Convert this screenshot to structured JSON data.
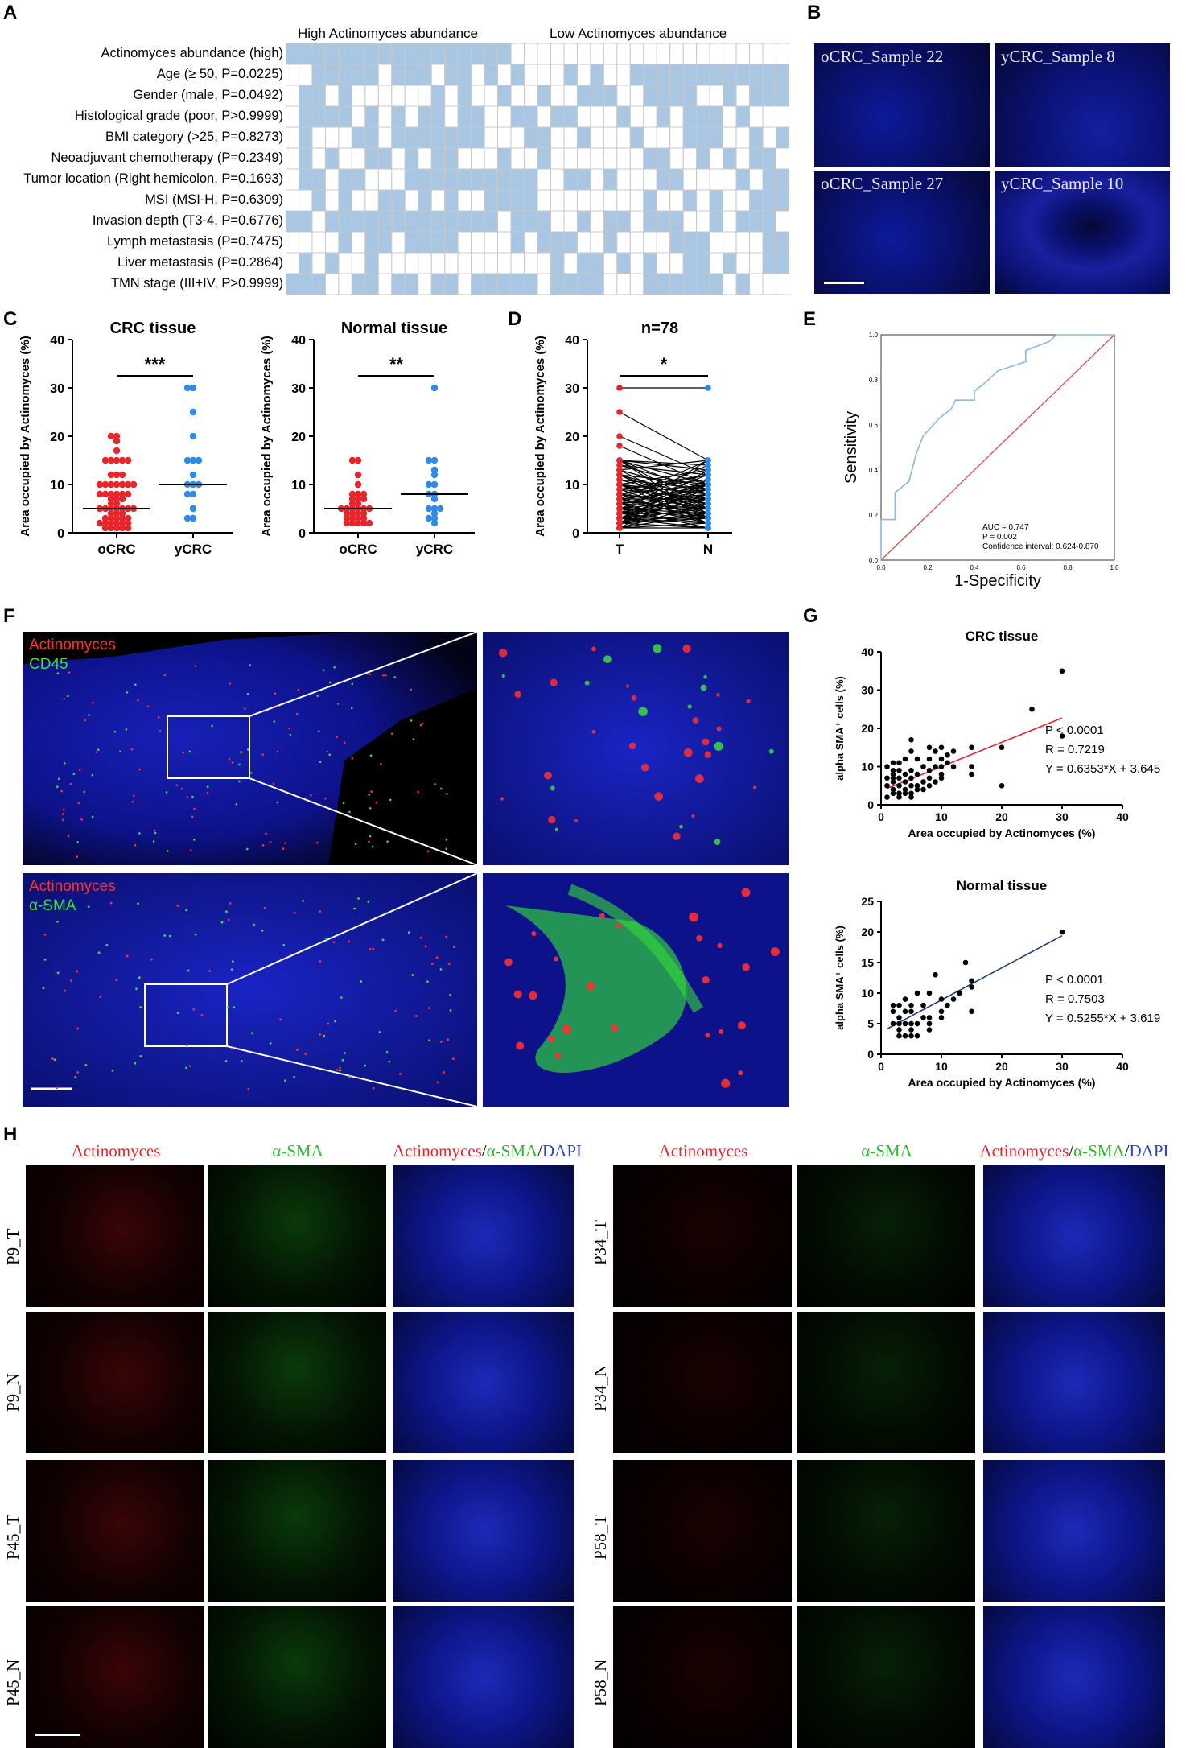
{
  "panels": {
    "A": "A",
    "B": "B",
    "C": "C",
    "D": "D",
    "E": "E",
    "F": "F",
    "G": "G",
    "H": "H"
  },
  "panelA": {
    "group_high": "High Actinomyces abundance",
    "group_low": "Low Actinomyces abundance",
    "rows": [
      "Actinomyces abundance (high)",
      "Age (≥  50, P=0.0225)",
      "Gender (male, P=0.0492)",
      "Histological grade (poor, P>0.9999)",
      "BMI category (>25, P=0.8273)",
      "Neoadjuvant chemotherapy (P=0.2349)",
      "Tumor location (Right hemicolon, P=0.1693)",
      "MSI (MSI-H, P=0.6309)",
      "Invasion depth (T3-4, P=0.6776)",
      "Lymph metastasis (P=0.7475)",
      "Liver metastasis (P=0.2864)",
      "TMN stage (III+IV, P>0.9999)"
    ],
    "fill_color": "#a9c6e3",
    "n_columns": 38
  },
  "panelB": {
    "samples": [
      "oCRC_Sample 22",
      "yCRC_Sample 8",
      "oCRC_Sample 27",
      "yCRC_Sample 10"
    ]
  },
  "chart_data": [
    {
      "type": "scatter",
      "panel": "C",
      "title": "CRC tissue",
      "ylabel": "Area occupied by Actinomyces (%)",
      "categories": [
        "oCRC",
        "yCRC"
      ],
      "ylim": [
        0,
        40
      ],
      "yticks": [
        0,
        10,
        20,
        30,
        40
      ],
      "significance": "***",
      "series": [
        {
          "name": "oCRC",
          "color": "#e8252b",
          "median": 5,
          "values": [
            20,
            20,
            19,
            17,
            15,
            15,
            15,
            15,
            15,
            12,
            12,
            12,
            10,
            10,
            10,
            10,
            10,
            10,
            10,
            8,
            8,
            8,
            8,
            8,
            8,
            7,
            7,
            7,
            6,
            6,
            5,
            5,
            5,
            5,
            5,
            5,
            5,
            4,
            4,
            4,
            3,
            3,
            3,
            3,
            3,
            2,
            2,
            2,
            2,
            2,
            2,
            1,
            1,
            1,
            1,
            1
          ]
        },
        {
          "name": "yCRC",
          "color": "#2f8be6",
          "median": 10,
          "values": [
            30,
            30,
            25,
            20,
            15,
            15,
            15,
            12,
            10,
            10,
            10,
            8,
            8,
            5,
            3,
            3
          ]
        }
      ]
    },
    {
      "type": "scatter",
      "panel": "C",
      "title": "Normal tissue",
      "ylabel": "Area occupied by Actinomyces (%)",
      "categories": [
        "oCRC",
        "yCRC"
      ],
      "ylim": [
        0,
        40
      ],
      "yticks": [
        0,
        10,
        20,
        30,
        40
      ],
      "significance": "**",
      "series": [
        {
          "name": "oCRC",
          "color": "#e8252b",
          "median": 5,
          "values": [
            15,
            15,
            12,
            10,
            8,
            8,
            8,
            7,
            7,
            7,
            6,
            6,
            5,
            5,
            5,
            5,
            5,
            5,
            4,
            4,
            4,
            4,
            3,
            3,
            3,
            3,
            2,
            2,
            2,
            2,
            2
          ]
        },
        {
          "name": "yCRC",
          "color": "#2f8be6",
          "median": 8,
          "values": [
            30,
            15,
            15,
            13,
            12,
            10,
            10,
            8,
            8,
            7,
            5,
            5,
            5,
            4,
            3,
            3,
            2
          ]
        }
      ]
    },
    {
      "type": "line",
      "panel": "D",
      "title": "n=78",
      "ylabel": "Area occupied by Actinomyces (%)",
      "categories": [
        "T",
        "N"
      ],
      "ylim": [
        0,
        40
      ],
      "yticks": [
        0,
        10,
        20,
        30,
        40
      ],
      "significance": "*",
      "pairs": [
        [
          30,
          30
        ],
        [
          25,
          15
        ],
        [
          20,
          12
        ],
        [
          18,
          10
        ],
        [
          15,
          14
        ],
        [
          15,
          13
        ],
        [
          15,
          10
        ],
        [
          15,
          8
        ],
        [
          15,
          5
        ],
        [
          15,
          3
        ],
        [
          14,
          12
        ],
        [
          13,
          15
        ],
        [
          13,
          8
        ],
        [
          12,
          10
        ],
        [
          12,
          7
        ],
        [
          12,
          5
        ],
        [
          12,
          3
        ],
        [
          11,
          9
        ],
        [
          10,
          13
        ],
        [
          10,
          8
        ],
        [
          10,
          6
        ],
        [
          10,
          5
        ],
        [
          10,
          4
        ],
        [
          10,
          2
        ],
        [
          9,
          11
        ],
        [
          9,
          7
        ],
        [
          9,
          3
        ],
        [
          8,
          12
        ],
        [
          8,
          10
        ],
        [
          8,
          6
        ],
        [
          8,
          5
        ],
        [
          8,
          2
        ],
        [
          7,
          9
        ],
        [
          7,
          7
        ],
        [
          7,
          4
        ],
        [
          7,
          3
        ],
        [
          6,
          10
        ],
        [
          6,
          8
        ],
        [
          6,
          5
        ],
        [
          6,
          2
        ],
        [
          5,
          12
        ],
        [
          5,
          9
        ],
        [
          5,
          7
        ],
        [
          5,
          5
        ],
        [
          5,
          4
        ],
        [
          5,
          3
        ],
        [
          5,
          1
        ],
        [
          4,
          10
        ],
        [
          4,
          8
        ],
        [
          4,
          6
        ],
        [
          4,
          4
        ],
        [
          4,
          2
        ],
        [
          3,
          11
        ],
        [
          3,
          9
        ],
        [
          3,
          7
        ],
        [
          3,
          5
        ],
        [
          3,
          3
        ],
        [
          3,
          2
        ],
        [
          3,
          1
        ],
        [
          2,
          13
        ],
        [
          2,
          8
        ],
        [
          2,
          6
        ],
        [
          2,
          4
        ],
        [
          2,
          3
        ],
        [
          2,
          1
        ],
        [
          1,
          10
        ],
        [
          1,
          6
        ],
        [
          1,
          4
        ],
        [
          1,
          2
        ],
        [
          1,
          1
        ],
        [
          7,
          15
        ],
        [
          6,
          14
        ],
        [
          9,
          12
        ],
        [
          11,
          6
        ],
        [
          13,
          4
        ],
        [
          14,
          9
        ],
        [
          4,
          15
        ],
        [
          2,
          11
        ]
      ]
    },
    {
      "type": "line",
      "panel": "E",
      "xlabel": "1-Specificity",
      "ylabel": "Sensitivity",
      "xlim": [
        0,
        1
      ],
      "ylim": [
        0,
        1
      ],
      "ticks": [
        "0.0",
        "0.2",
        "0.4",
        "0.6",
        "0.8",
        "1.0"
      ],
      "roc_x": [
        0,
        0,
        0.06,
        0.06,
        0.12,
        0.15,
        0.18,
        0.25,
        0.3,
        0.32,
        0.4,
        0.4,
        0.45,
        0.5,
        0.62,
        0.62,
        0.72,
        0.75,
        1
      ],
      "roc_y": [
        0,
        0.18,
        0.18,
        0.3,
        0.35,
        0.47,
        0.55,
        0.63,
        0.67,
        0.71,
        0.71,
        0.75,
        0.79,
        0.84,
        0.88,
        0.93,
        0.97,
        1,
        1
      ],
      "roc_color": "#8ab8e0",
      "ref_color": "#d9534f",
      "annotations": [
        "AUC = 0.747",
        "P = 0.002",
        "Confidence interval: 0.624-0.870"
      ]
    },
    {
      "type": "scatter",
      "panel": "G",
      "title": "CRC tissue",
      "xlabel": "Area occupied by Actinomyces (%)",
      "ylabel": "alpha SMA⁺ cells (%)",
      "xlim": [
        0,
        40
      ],
      "ylim": [
        0,
        40
      ],
      "ticks": [
        0,
        10,
        20,
        30,
        40
      ],
      "x": [
        1,
        1,
        1,
        2,
        2,
        2,
        2,
        2,
        2,
        3,
        3,
        3,
        3,
        3,
        4,
        4,
        4,
        4,
        5,
        5,
        5,
        5,
        5,
        6,
        6,
        6,
        7,
        7,
        8,
        8,
        8,
        8,
        9,
        9,
        10,
        10,
        10,
        10,
        11,
        11,
        12,
        12,
        15,
        15,
        15,
        20,
        20,
        25,
        30,
        30,
        1,
        2,
        3,
        4,
        5,
        5,
        6,
        7,
        8,
        9,
        10
      ],
      "y": [
        2,
        5,
        10,
        3,
        4,
        6,
        7,
        8,
        11,
        2,
        3,
        5,
        7,
        9,
        4,
        6,
        8,
        12,
        3,
        5,
        7,
        14,
        17,
        5,
        8,
        12,
        6,
        10,
        7,
        9,
        12,
        15,
        10,
        14,
        8,
        10,
        12,
        15,
        11,
        13,
        10,
        14,
        8,
        10,
        15,
        15,
        5,
        25,
        35,
        18,
        7,
        9,
        11,
        3,
        9,
        2,
        4,
        4,
        5,
        6,
        7
      ],
      "fit": {
        "slope": 0.6353,
        "intercept": 3.645,
        "color": "#e8252b"
      },
      "annotations": [
        "P < 0.0001",
        "R = 0.7219",
        "Y = 0.6353*X + 3.645"
      ]
    },
    {
      "type": "scatter",
      "panel": "G",
      "title": "Normal tissue",
      "xlabel": "Area occupied by Actinomyces (%)",
      "ylabel": "alpha SMA⁺ cells (%)",
      "xlim": [
        0,
        40
      ],
      "ylim": [
        0,
        25
      ],
      "yticks": [
        0,
        5,
        10,
        15,
        20,
        25
      ],
      "xticks": [
        0,
        10,
        20,
        30,
        40
      ],
      "x": [
        2,
        2,
        2,
        3,
        3,
        3,
        3,
        4,
        4,
        4,
        5,
        5,
        5,
        5,
        5,
        6,
        6,
        7,
        7,
        8,
        8,
        8,
        8,
        9,
        10,
        10,
        10,
        11,
        12,
        13,
        14,
        15,
        15,
        15,
        30,
        4,
        3,
        6
      ],
      "y": [
        5,
        7,
        8,
        3,
        4,
        6,
        8,
        3,
        5,
        9,
        3,
        4,
        5,
        7,
        8,
        5,
        10,
        6,
        8,
        4,
        5,
        6,
        10,
        13,
        6,
        7,
        9,
        8,
        9,
        10,
        15,
        7,
        11,
        12,
        20,
        7,
        5,
        3
      ],
      "fit": {
        "slope": 0.5255,
        "intercept": 3.619,
        "color": "#1f3e7a"
      },
      "annotations": [
        "P < 0.0001",
        "R = 0.7503",
        "Y = 0.5255*X + 3.619"
      ]
    }
  ],
  "panelF": {
    "top_labels": [
      "Actinomyces",
      "CD45"
    ],
    "bottom_labels": [
      "Actinomyces",
      "α-SMA"
    ],
    "red": "#ff3030",
    "green": "#3ddc3d"
  },
  "panelH": {
    "col_actino": "Actinomyces",
    "col_sma": "α-SMA",
    "col_merge_a": "Actinomyces",
    "col_merge_slash1": "/",
    "col_merge_b": "α-SMA",
    "col_merge_slash2": "/",
    "col_merge_c": "DAPI",
    "left_rows": [
      "P9_T",
      "P9_N",
      "P45_T",
      "P45_N"
    ],
    "right_rows": [
      "P34_T",
      "P34_N",
      "P58_T",
      "P58_N"
    ]
  }
}
